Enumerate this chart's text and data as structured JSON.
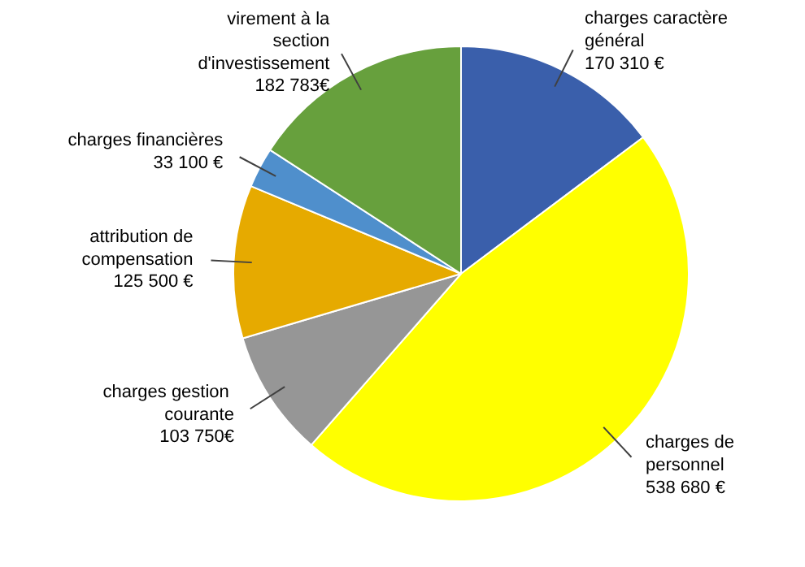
{
  "chart_data": {
    "type": "pie",
    "categories": [
      "charges caractère\ngénéral",
      "charges de\npersonnel",
      "charges  gestion\ncourante",
      "attribution de\ncompensation",
      "charges financières",
      "virement à la\nsection\nd'investissement"
    ],
    "values": [
      170310,
      538680,
      103750,
      125500,
      33100,
      182783
    ],
    "value_labels": [
      "170 310 €",
      "538 680 €",
      "103 750€",
      "125 500 €",
      "33 100 €",
      "182 783€"
    ],
    "colors": [
      "#3a5fab",
      "#ffff00",
      "#969696",
      "#e6aa00",
      "#4f8fcc",
      "#67a03d"
    ],
    "legend": false
  }
}
